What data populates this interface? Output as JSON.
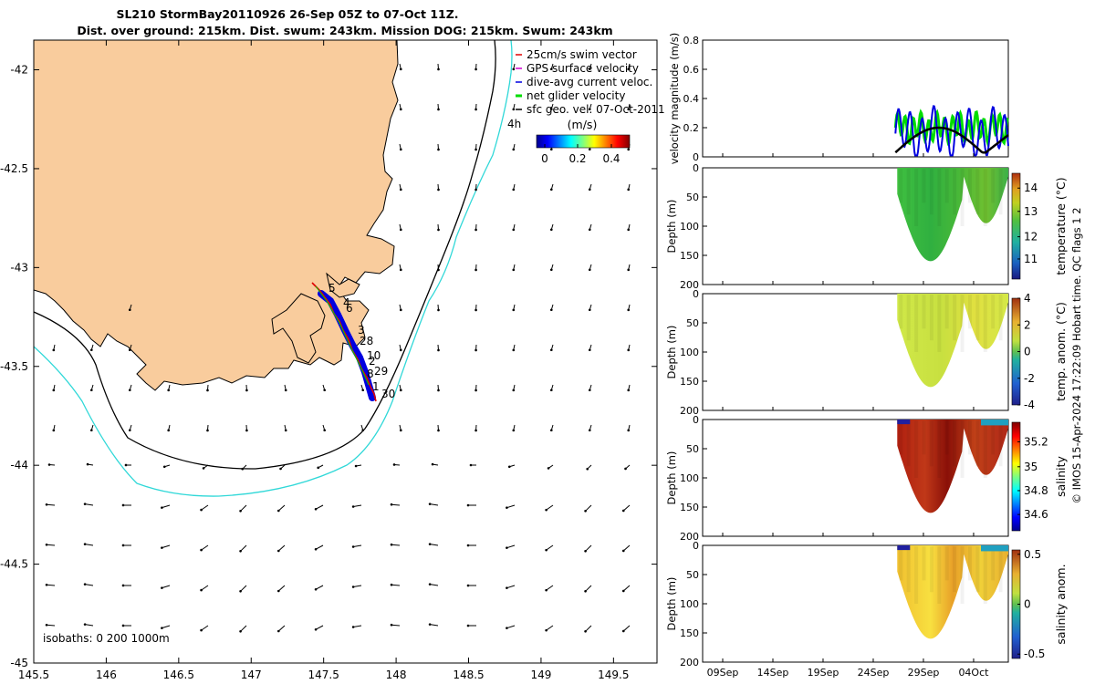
{
  "title": {
    "line1": "SL210 StormBay20110926 26-Sep 05Z to 07-Oct 11Z.",
    "line2": "Dist. over ground: 215km. Dist. swum: 243km. Mission DOG: 215km. Swum: 243km"
  },
  "map": {
    "legend": [
      "25cm/s swim vector",
      "GPS surface velocity",
      "dive-avg current veloc.",
      "net glider velocity",
      "sfc geo. vel. 07-Oct-2011"
    ],
    "legend_colors": [
      "#e00000",
      "#d000d0",
      "#0000e0",
      "#00dd00",
      "#000000"
    ],
    "hour_label": "4h",
    "colorbar_label": "(m/s)",
    "colorbar_ticks": [
      "0",
      "0.2",
      "0.4"
    ],
    "isobaths": "isobaths: 0   200  1000m",
    "xticks": [
      "145.5",
      "146",
      "146.5",
      "147",
      "147.5",
      "148",
      "148.5",
      "149",
      "149.5"
    ],
    "yticks": [
      "-42",
      "-42.5",
      "-43",
      "-43.5",
      "-44",
      "-44.5",
      "-45"
    ],
    "track_day_labels": [
      "5",
      "4",
      "6",
      "3",
      "28",
      "10",
      "2",
      "29",
      "8",
      "1",
      "30"
    ],
    "land_color": "#f9cc9d",
    "isobath_200_color": "#000000",
    "isobath_1000_color": "#30d8d8"
  },
  "timeseries": {
    "xticks": [
      "09Sep",
      "14Sep",
      "19Sep",
      "24Sep",
      "29Sep",
      "04Oct"
    ],
    "depth_ylabel": "Depth (m)",
    "depth_ticks": [
      "0",
      "50",
      "100",
      "150",
      "200"
    ],
    "velocity_ylabel": "velocity magnitude (m/s)",
    "velocity_ticks": [
      "0",
      "0.2",
      "0.4",
      "0.6",
      "0.8"
    ],
    "panels": [
      {
        "cb_label": "temperature (°C)",
        "cb_ticks": [
          "14",
          "13",
          "12",
          "11"
        ]
      },
      {
        "cb_label": "temp. anom. (°C)",
        "cb_ticks": [
          "4",
          "2",
          "0",
          "-2",
          "-4"
        ]
      },
      {
        "cb_label": "salinity",
        "cb_ticks": [
          "35.2",
          "35",
          "34.8",
          "34.6"
        ]
      },
      {
        "cb_label": "salinity anom.",
        "cb_ticks": [
          "0.5",
          "0",
          "-0.5"
        ]
      }
    ],
    "credit": "© IMOS 15-Apr-2024 17:22:09 Hobart time. QC flags 1  2"
  },
  "chart_data": [
    {
      "type": "scatter",
      "title": "SL210 StormBay20110926 26-Sep 05Z to 07-Oct 11Z.",
      "xlim": [
        145.5,
        149.8
      ],
      "ylim": [
        -45,
        -41.85
      ],
      "glider_track": {
        "lon": [
          147.43,
          147.5,
          147.6,
          147.68,
          147.72,
          147.76,
          147.8,
          147.84,
          147.86
        ],
        "lat": [
          -43.08,
          -43.15,
          -43.25,
          -43.35,
          -43.45,
          -43.52,
          -43.58,
          -43.65,
          -43.7
        ]
      }
    },
    {
      "type": "line",
      "ylabel": "velocity magnitude (m/s)",
      "ylim": [
        0,
        0.8
      ],
      "x_range": [
        "09Sep",
        "07Oct"
      ],
      "series": [
        {
          "name": "net glider velocity",
          "color": "#00dd00",
          "level_range": [
            0.1,
            0.3
          ]
        },
        {
          "name": "dive-avg current veloc.",
          "color": "#0000e0",
          "level_range": [
            0.0,
            0.37
          ]
        },
        {
          "name": "sfc geo. vel. 07-Oct-2011",
          "color": "#000000",
          "level_range": [
            0.02,
            0.2
          ]
        }
      ]
    },
    {
      "type": "heatmap",
      "colorbar": "temperature (°C)",
      "clim": [
        10.5,
        14.5
      ],
      "ylim_depth": [
        0,
        200
      ],
      "max_depth": 160
    },
    {
      "type": "heatmap",
      "colorbar": "temp. anom. (°C)",
      "clim": [
        -4,
        4
      ],
      "ylim_depth": [
        0,
        200
      ],
      "max_depth": 160
    },
    {
      "type": "heatmap",
      "colorbar": "salinity",
      "clim": [
        34.5,
        35.3
      ],
      "ylim_depth": [
        0,
        200
      ],
      "max_depth": 160
    },
    {
      "type": "heatmap",
      "colorbar": "salinity anom.",
      "clim": [
        -0.5,
        0.5
      ],
      "ylim_depth": [
        0,
        200
      ],
      "max_depth": 160
    }
  ]
}
